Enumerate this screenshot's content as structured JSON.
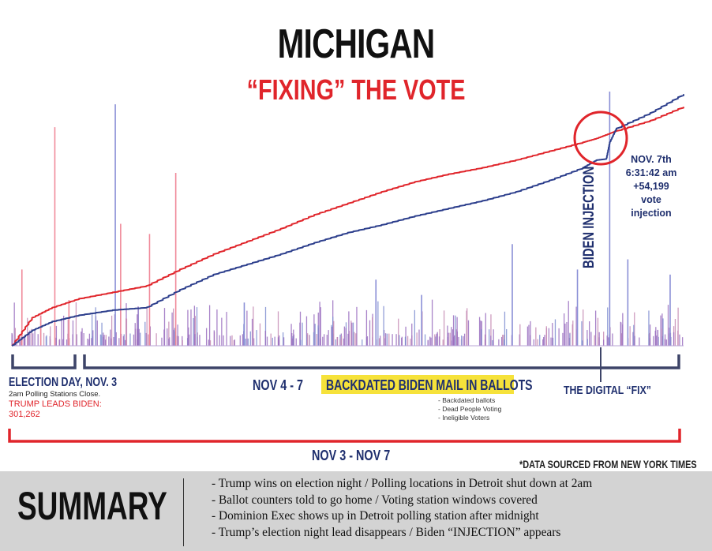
{
  "title": "MICHIGAN",
  "subtitle": "“FIXING” THE VOTE",
  "colors": {
    "trump": "#e0252b",
    "biden": "#2c3e8c",
    "dark": "#1f2f6e",
    "highlight": "#f6e23a",
    "summary_bg": "#d3d3d3"
  },
  "chart_data": {
    "type": "line",
    "title": "MICHIGAN",
    "subtitle": "“FIXING” THE VOTE",
    "x_label": "NOV 3 - NOV 7",
    "y_label": "",
    "grid": false,
    "series": [
      {
        "name": "Trump",
        "color": "#e0252b",
        "x": [
          0,
          3,
          6,
          10,
          15,
          20,
          25,
          30,
          35,
          40,
          45,
          50,
          55,
          60,
          65,
          70,
          75,
          80,
          85,
          87,
          89,
          90,
          95,
          100
        ],
        "y": [
          0,
          11,
          15,
          18.5,
          21,
          23.5,
          30,
          36,
          41,
          46,
          51.5,
          56,
          60.5,
          64.5,
          67.5,
          70,
          73,
          76.5,
          80,
          81.5,
          83.5,
          84.5,
          88.5,
          94
        ]
      },
      {
        "name": "Biden",
        "color": "#2c3e8c",
        "x": [
          0,
          3,
          6,
          10,
          15,
          20,
          25,
          30,
          35,
          40,
          45,
          50,
          55,
          60,
          65,
          70,
          75,
          80,
          85,
          87,
          88.5,
          89,
          90,
          95,
          100
        ],
        "y": [
          0,
          6,
          9.5,
          12,
          14,
          15,
          22,
          28,
          32,
          36,
          40.5,
          44.5,
          47.5,
          51,
          54,
          57,
          60.5,
          65,
          70,
          73,
          73.5,
          80,
          85.5,
          91.5,
          99
        ]
      }
    ],
    "spike_bars": {
      "note": "vertical vote-batch spikes along baseline",
      "tall": [
        {
          "x": 1.5,
          "y": 30,
          "series": "Trump"
        },
        {
          "x": 4.3,
          "y": 12,
          "series": "Trump"
        },
        {
          "x": 6.4,
          "y": 86,
          "series": "Trump"
        },
        {
          "x": 8.5,
          "y": 18,
          "series": "Trump"
        },
        {
          "x": 15.4,
          "y": 95,
          "series": "Biden"
        },
        {
          "x": 16.2,
          "y": 48,
          "series": "Trump"
        },
        {
          "x": 20.5,
          "y": 44,
          "series": "Trump"
        },
        {
          "x": 24.4,
          "y": 68,
          "series": "Trump"
        },
        {
          "x": 34.6,
          "y": 17,
          "series": "Biden"
        },
        {
          "x": 54.2,
          "y": 26,
          "series": "Biden"
        },
        {
          "x": 61.0,
          "y": 20,
          "series": "Biden"
        },
        {
          "x": 74.5,
          "y": 40,
          "series": "Biden"
        },
        {
          "x": 84.2,
          "y": 30,
          "series": "Biden"
        },
        {
          "x": 89.0,
          "y": 100,
          "series": "Biden"
        },
        {
          "x": 91.7,
          "y": 34,
          "series": "Biden"
        },
        {
          "x": 98.0,
          "y": 28,
          "series": "Biden"
        }
      ]
    },
    "annotations": [
      "BIDEN INJECTION",
      "NOV. 7th",
      "6:31:42 am",
      "+54,199 vote",
      "injection"
    ]
  },
  "labels": {
    "biden_injection": "BIDEN INJECTION",
    "callout": [
      "NOV. 7th",
      "6:31:42 am",
      "+54,199 vote",
      "injection"
    ],
    "election_day": "ELECTION DAY, NOV. 3",
    "polling_close": "2am Polling Stations Close.",
    "trump_leads_1": "TRUMP LEADS BIDEN:",
    "trump_leads_2": "301,262",
    "nov4_7": "NOV 4 - 7",
    "backdated": "BACKDATED BIDEN MAIL IN BALLOTS",
    "backdated_items": [
      "- Backdated ballots",
      "- Dead People Voting",
      "- Ineligible Voters"
    ],
    "digital_fix": "THE DIGITAL “FIX”",
    "range": "NOV 3 - NOV 7",
    "source": "*DATA SOURCED FROM NEW YORK TIMES"
  },
  "summary": {
    "title": "SUMMARY",
    "items": [
      "- Trump wins on election night / Polling locations in Detroit shut down at 2am",
      "- Ballot counters told to go home / Voting station windows covered",
      "- Dominion Exec shows up in Detroit polling station after midnight",
      "- Trump’s election night lead disappears / Biden “INJECTION” appears"
    ]
  }
}
